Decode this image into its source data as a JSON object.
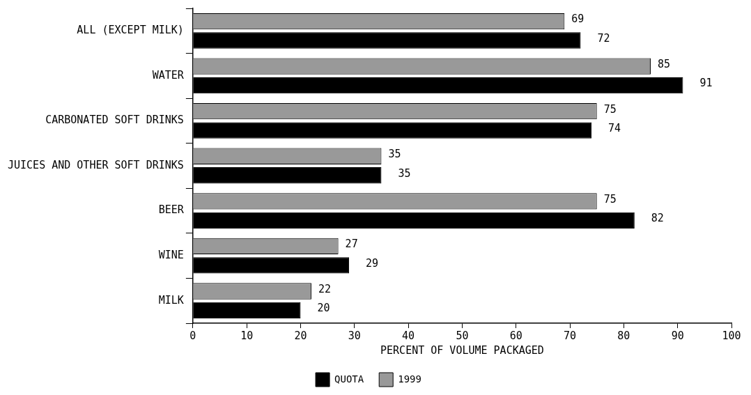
{
  "chart_data": {
    "type": "bar",
    "orientation": "horizontal",
    "xlabel": "PERCENT OF VOLUME PACKAGED",
    "categories": [
      "ALL (EXCEPT MILK)",
      "WATER",
      "CARBONATED SOFT DRINKS",
      "JUICES AND OTHER SOFT DRINKS",
      "BEER",
      "WINE",
      "MILK"
    ],
    "series": [
      {
        "name": "1999",
        "color": "#999999",
        "values": [
          69,
          85,
          75,
          35,
          75,
          27,
          22
        ]
      },
      {
        "name": "QUOTA",
        "color": "#000000",
        "values": [
          72,
          91,
          74,
          35,
          82,
          29,
          20
        ]
      }
    ],
    "xlim": [
      0,
      100
    ],
    "xticks": [
      0,
      10,
      20,
      30,
      40,
      50,
      60,
      70,
      80,
      90,
      100
    ],
    "data_labels": true,
    "legend": "bottom",
    "grid": false
  }
}
